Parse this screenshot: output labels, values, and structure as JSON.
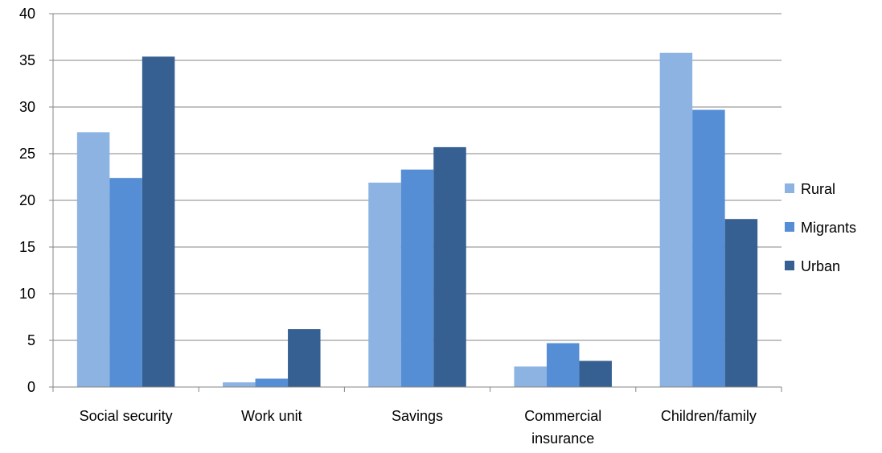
{
  "chart_data": {
    "type": "bar",
    "title": "",
    "xlabel": "",
    "ylabel": "",
    "categories": [
      [
        "Social security"
      ],
      [
        "Work unit"
      ],
      [
        "Savings"
      ],
      [
        "Commercial",
        "insurance"
      ],
      [
        "Children/family"
      ]
    ],
    "series": [
      {
        "name": "Rural",
        "color": "#8DB3E2",
        "values": [
          27.3,
          0.5,
          21.9,
          2.2,
          35.8
        ]
      },
      {
        "name": "Migrants",
        "color": "#558ED5",
        "values": [
          22.4,
          0.9,
          23.3,
          4.7,
          29.7
        ]
      },
      {
        "name": "Urban",
        "color": "#376092",
        "values": [
          35.4,
          6.2,
          25.7,
          2.8,
          18.0
        ]
      }
    ],
    "ylim": [
      0,
      40
    ],
    "yticks": [
      0,
      5,
      10,
      15,
      20,
      25,
      30,
      35,
      40
    ],
    "grid": true,
    "gridline_color": "#868686",
    "legend_position": "right"
  }
}
